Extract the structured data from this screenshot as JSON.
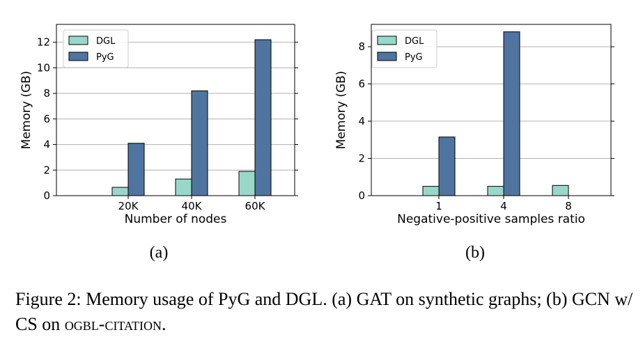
{
  "colors": {
    "dgl": "#99d8c9",
    "pyg": "#4f74a0",
    "grid": "#b0b0b0"
  },
  "chart_data": [
    {
      "id": "a",
      "type": "bar",
      "categories": [
        "20K",
        "40K",
        "60K"
      ],
      "series": [
        {
          "name": "DGL",
          "values": [
            0.65,
            1.3,
            1.9
          ]
        },
        {
          "name": "PyG",
          "values": [
            4.1,
            8.2,
            12.2
          ]
        }
      ],
      "xlabel": "Number of nodes",
      "ylabel": "Memory (GB)",
      "ylim": [
        0,
        13.4
      ],
      "yticks": [
        0,
        2,
        4,
        6,
        8,
        10,
        12
      ],
      "grid": "horizontal",
      "legend": "top-left"
    },
    {
      "id": "b",
      "type": "bar",
      "categories": [
        "1",
        "4",
        "8"
      ],
      "series": [
        {
          "name": "DGL",
          "values": [
            0.5,
            0.5,
            0.55
          ]
        },
        {
          "name": "PyG",
          "values": [
            3.15,
            8.8,
            null
          ]
        }
      ],
      "xlabel": "Negative-positive samples ratio",
      "ylabel": "Memory (GB)",
      "ylim": [
        0,
        9.2
      ],
      "yticks": [
        0,
        2,
        4,
        6,
        8
      ],
      "grid": "horizontal",
      "legend": "top-left"
    }
  ],
  "subfigure_labels": {
    "a": "(a)",
    "b": "(b)"
  },
  "caption": {
    "prefix": "Figure 2: Memory usage of PyG and DGL. (a) GAT on synthetic graphs; (b) GCN w/ CS on ",
    "smallcaps": "ogbl-citation",
    "suffix": "."
  }
}
